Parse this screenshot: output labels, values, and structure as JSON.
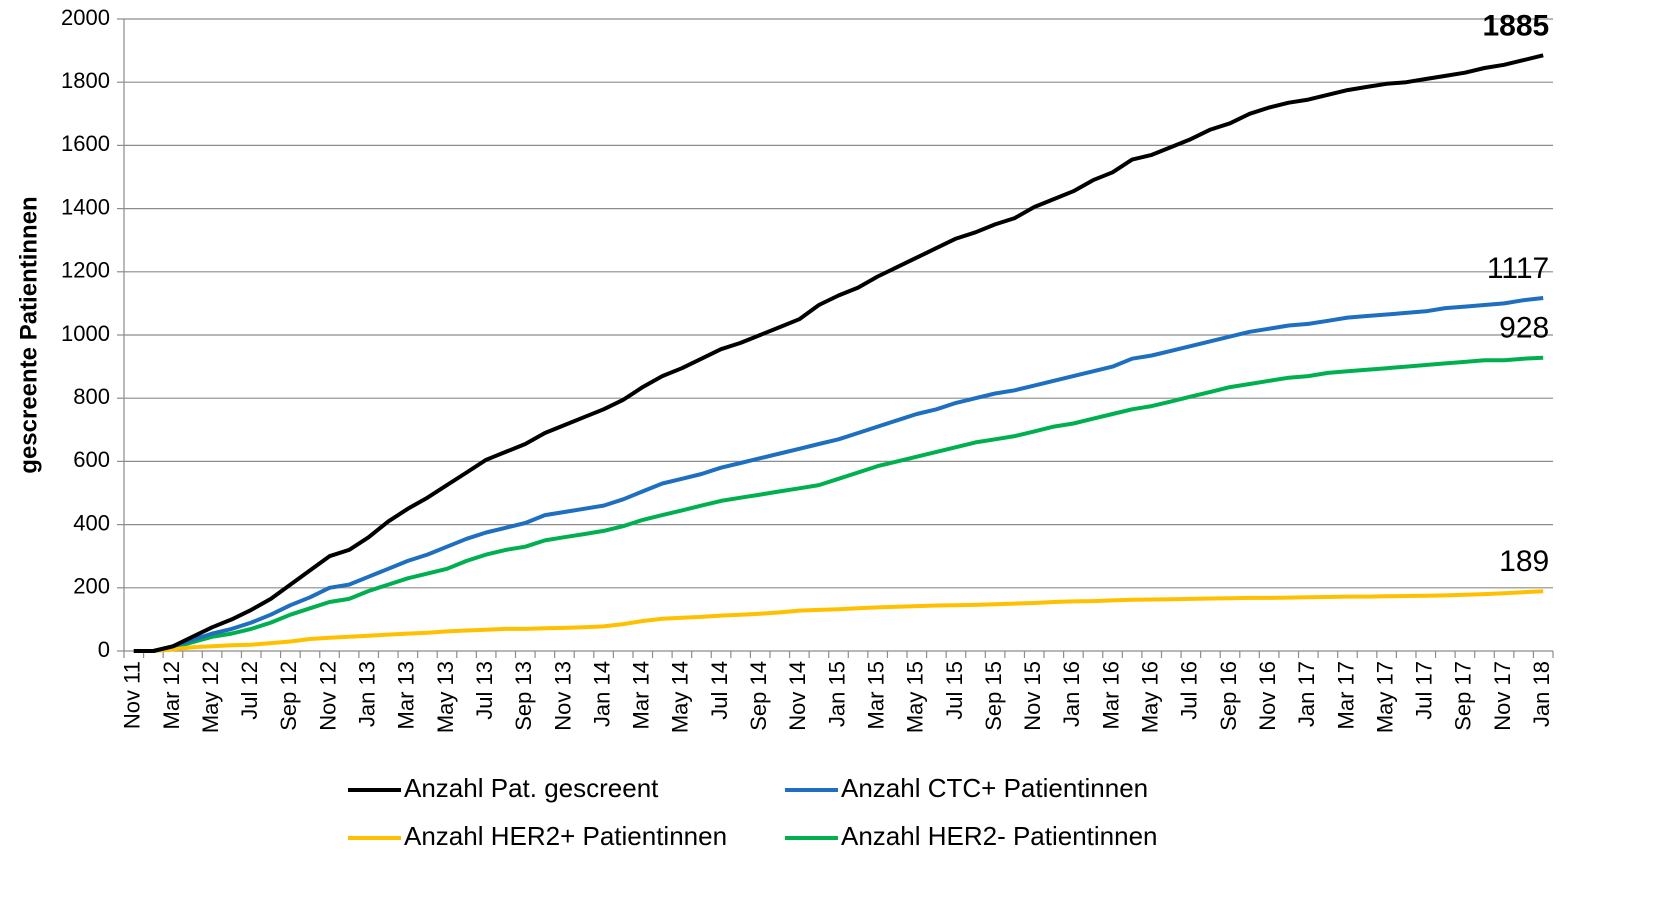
{
  "chart_data": {
    "type": "line",
    "y_label": "gescreente Patientinnen",
    "categories": [
      "Nov 11",
      null,
      "Mar 12",
      null,
      "May 12",
      null,
      "Jul 12",
      null,
      "Sep 12",
      null,
      "Nov 12",
      null,
      "Jan 13",
      null,
      "Mar 13",
      null,
      "May 13",
      null,
      "Jul 13",
      null,
      "Sep 13",
      null,
      "Nov 13",
      null,
      "Jan 14",
      null,
      "Mar 14",
      null,
      "May 14",
      null,
      "Jul 14",
      null,
      "Sep 14",
      null,
      "Nov 14",
      null,
      "Jan 15",
      null,
      "Mar 15",
      null,
      "May 15",
      null,
      "Jul 15",
      null,
      "Sep 15",
      null,
      "Nov 15",
      null,
      "Jan 16",
      null,
      "Mar 16",
      null,
      "May 16",
      null,
      "Jul 16",
      null,
      "Sep 16",
      null,
      "Nov 16",
      null,
      "Jan 17",
      null,
      "Mar 17",
      null,
      "May 17",
      null,
      "Jul 17",
      null,
      "Sep 17",
      null,
      "Nov 17",
      null,
      "Jan 18"
    ],
    "series": [
      {
        "name": "Anzahl Pat. gescreent",
        "color": "#000000",
        "end_label_weight": "bold",
        "values": [
          0,
          0,
          15,
          45,
          75,
          100,
          130,
          165,
          210,
          255,
          300,
          320,
          360,
          410,
          450,
          485,
          525,
          565,
          605,
          630,
          655,
          690,
          715,
          740,
          765,
          795,
          835,
          870,
          895,
          925,
          955,
          975,
          1000,
          1025,
          1050,
          1095,
          1125,
          1150,
          1185,
          1215,
          1245,
          1275,
          1305,
          1325,
          1350,
          1370,
          1405,
          1430,
          1455,
          1490,
          1515,
          1555,
          1570,
          1595,
          1620,
          1650,
          1670,
          1700,
          1720,
          1735,
          1745,
          1760,
          1775,
          1785,
          1795,
          1800,
          1810,
          1820,
          1830,
          1845,
          1855,
          1870,
          1885
        ]
      },
      {
        "name": "Anzahl CTC+ Patientinnen",
        "color": "#1f6fc0",
        "end_label_weight": "normal",
        "values": [
          0,
          0,
          15,
          35,
          55,
          70,
          90,
          115,
          145,
          170,
          200,
          210,
          235,
          260,
          285,
          305,
          330,
          355,
          375,
          390,
          405,
          430,
          440,
          450,
          460,
          480,
          505,
          530,
          545,
          560,
          580,
          595,
          610,
          625,
          640,
          655,
          670,
          690,
          710,
          730,
          750,
          765,
          785,
          800,
          815,
          825,
          840,
          855,
          870,
          885,
          900,
          925,
          935,
          950,
          965,
          980,
          995,
          1010,
          1020,
          1030,
          1035,
          1045,
          1055,
          1060,
          1065,
          1070,
          1075,
          1085,
          1090,
          1095,
          1100,
          1110,
          1117
        ]
      },
      {
        "name": "Anzahl HER2+ Patientinnen",
        "color": "#ffc000",
        "end_label_weight": "normal",
        "values": [
          0,
          0,
          5,
          12,
          15,
          18,
          20,
          25,
          30,
          38,
          42,
          45,
          48,
          52,
          55,
          58,
          62,
          65,
          67,
          70,
          70,
          72,
          73,
          75,
          78,
          85,
          95,
          102,
          105,
          108,
          112,
          115,
          118,
          122,
          128,
          130,
          132,
          135,
          138,
          140,
          142,
          144,
          145,
          146,
          148,
          150,
          152,
          155,
          157,
          158,
          160,
          162,
          163,
          164,
          165,
          166,
          167,
          168,
          168,
          169,
          170,
          171,
          172,
          172,
          173,
          174,
          175,
          176,
          178,
          180,
          183,
          186,
          189
        ]
      },
      {
        "name": "Anzahl HER2- Patientinnen",
        "color": "#00b050",
        "end_label_weight": "normal",
        "values": [
          0,
          0,
          10,
          28,
          45,
          55,
          70,
          90,
          115,
          135,
          155,
          165,
          190,
          210,
          230,
          245,
          260,
          285,
          305,
          320,
          330,
          350,
          360,
          370,
          380,
          395,
          415,
          430,
          445,
          460,
          475,
          485,
          495,
          505,
          515,
          525,
          545,
          565,
          585,
          600,
          615,
          630,
          645,
          660,
          670,
          680,
          695,
          710,
          720,
          735,
          750,
          765,
          775,
          790,
          805,
          820,
          835,
          845,
          855,
          865,
          870,
          880,
          885,
          890,
          895,
          900,
          905,
          910,
          915,
          920,
          920,
          925,
          928
        ]
      }
    ],
    "ylim": [
      0,
      2000
    ],
    "yticks": [
      0,
      200,
      400,
      600,
      800,
      1000,
      1200,
      1400,
      1600,
      1800,
      2000
    ],
    "grid": true,
    "legend": "bottom"
  }
}
